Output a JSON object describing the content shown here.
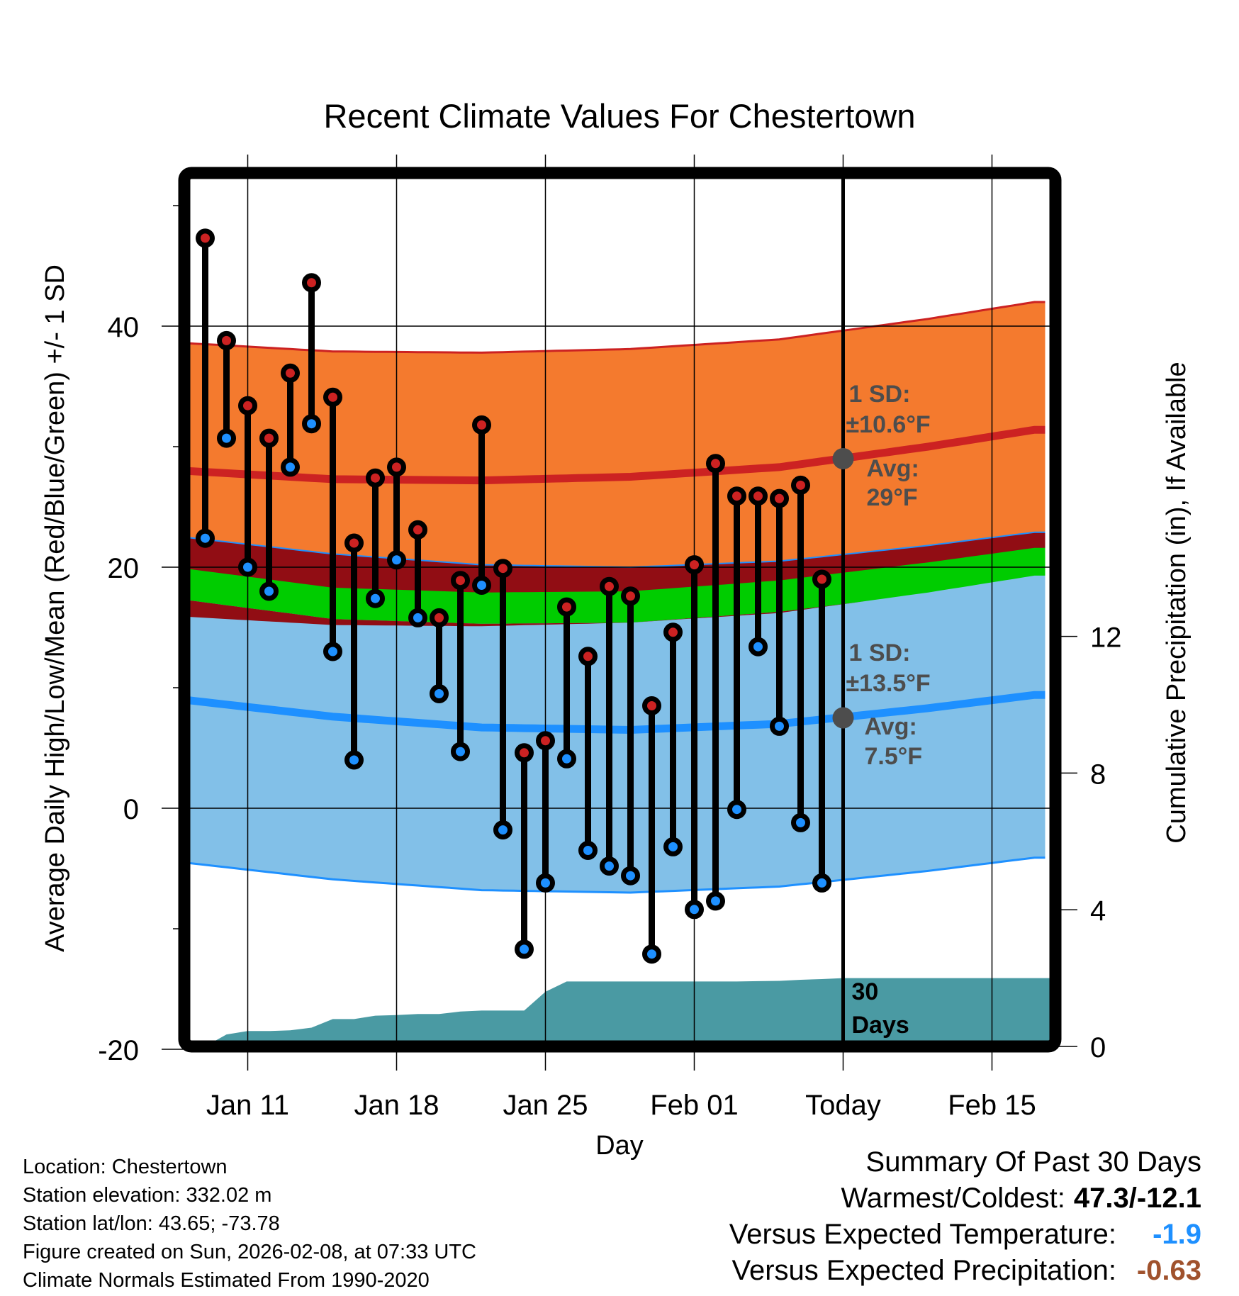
{
  "chart_data": {
    "type": "line",
    "title": "Recent Climate Values For Chestertown",
    "xlabel": "Day",
    "ylabel": "Average Daily High/Low/Mean (Red/Blue/Green) +/- 1 SD",
    "y2label": "Cumulative Precipitation (in), If Available",
    "x_range_days": [
      "Jan 08",
      "Feb 17"
    ],
    "ylim": [
      -20,
      53
    ],
    "y2lim": [
      0,
      17.2
    ],
    "grid": true,
    "xticks": [
      {
        "day": "Jan 11",
        "label": "Jan 11"
      },
      {
        "day": "Jan 18",
        "label": "Jan 18"
      },
      {
        "day": "Jan 25",
        "label": "Jan 25"
      },
      {
        "day": "Feb 01",
        "label": "Feb 01"
      },
      {
        "day": "Feb 08",
        "label": "Today"
      },
      {
        "day": "Feb 15",
        "label": "Feb 15"
      }
    ],
    "yticks": [
      -20,
      0,
      20,
      40
    ],
    "yticks_minor": [
      -10,
      10,
      30,
      50
    ],
    "y2ticks": [
      0,
      4,
      8,
      12
    ],
    "observed": {
      "dates": [
        "Jan 09",
        "Jan 10",
        "Jan 11",
        "Jan 12",
        "Jan 13",
        "Jan 14",
        "Jan 15",
        "Jan 16",
        "Jan 17",
        "Jan 18",
        "Jan 19",
        "Jan 20",
        "Jan 21",
        "Jan 22",
        "Jan 23",
        "Jan 24",
        "Jan 25",
        "Jan 26",
        "Jan 27",
        "Jan 28",
        "Jan 29",
        "Jan 30",
        "Jan 31",
        "Feb 01",
        "Feb 02",
        "Feb 03",
        "Feb 04",
        "Feb 05",
        "Feb 06",
        "Feb 07"
      ],
      "high": [
        47.3,
        38.8,
        33.4,
        30.7,
        36.1,
        43.6,
        34.1,
        22.0,
        27.4,
        28.3,
        23.1,
        15.8,
        18.9,
        31.8,
        19.9,
        4.6,
        5.6,
        16.7,
        12.6,
        18.4,
        17.6,
        8.5,
        14.6,
        20.2,
        28.6,
        25.9,
        25.9,
        25.7,
        26.8,
        19.0
      ],
      "low": [
        22.4,
        30.7,
        20.0,
        18.0,
        28.3,
        31.9,
        13.0,
        4.0,
        17.4,
        20.6,
        15.8,
        9.5,
        4.7,
        18.5,
        -1.8,
        -11.7,
        -6.2,
        4.1,
        -3.5,
        -4.8,
        -5.6,
        -12.1,
        -3.2,
        -8.4,
        -7.7,
        -0.1,
        13.4,
        6.8,
        -1.2,
        -6.2
      ]
    },
    "normals": {
      "days": [
        "Jan 08",
        "Jan 15",
        "Jan 22",
        "Jan 29",
        "Feb 05",
        "Feb 12",
        "Feb 17"
      ],
      "high_avg": [
        28.0,
        27.3,
        27.2,
        27.5,
        28.3,
        30.0,
        31.4
      ],
      "high_sd": 10.6,
      "low_avg": [
        9.0,
        7.6,
        6.7,
        6.5,
        7.0,
        8.3,
        9.4
      ],
      "low_sd": 13.5,
      "mean_avg": [
        18.6,
        17.0,
        16.6,
        16.7,
        17.6,
        19.1,
        20.3
      ],
      "mean_sd_band": 2.6
    },
    "precip_cumulative": {
      "dates": [
        "Jan 08",
        "Jan 09",
        "Jan 10",
        "Jan 11",
        "Jan 12",
        "Jan 13",
        "Jan 14",
        "Jan 15",
        "Jan 16",
        "Jan 17",
        "Jan 18",
        "Jan 19",
        "Jan 20",
        "Jan 21",
        "Jan 22",
        "Jan 23",
        "Jan 24",
        "Jan 25",
        "Jan 26",
        "Jan 27",
        "Jan 28",
        "Jan 29",
        "Jan 30",
        "Jan 31",
        "Feb 01",
        "Feb 02",
        "Feb 03",
        "Feb 04",
        "Feb 05",
        "Feb 06",
        "Feb 07",
        "Feb 08",
        "Feb 17"
      ],
      "values": [
        0.0,
        0.0,
        0.35,
        0.45,
        0.45,
        0.47,
        0.55,
        0.8,
        0.8,
        0.9,
        0.92,
        0.95,
        0.95,
        1.02,
        1.05,
        1.05,
        1.05,
        1.6,
        1.9,
        1.9,
        1.9,
        1.9,
        1.9,
        1.9,
        1.9,
        1.9,
        1.9,
        1.91,
        1.92,
        1.95,
        1.97,
        2.0,
        2.0
      ]
    },
    "annotations": {
      "high_sd": "1 SD:",
      "high_sd_value": "±10.6°F",
      "high_avg": "Avg:",
      "high_avg_value": "29°F",
      "high_avg_today": 29,
      "low_sd": "1 SD:",
      "low_sd_value": "±13.5°F",
      "low_avg": "Avg:",
      "low_avg_value": "7.5°F",
      "low_avg_today": 7.5,
      "precip_label_1": "30",
      "precip_label_2": "Days"
    },
    "colors": {
      "high_band": "#f47a2e",
      "high_line": "#cc2222",
      "low_band": "#82c0e8",
      "low_line": "#1e90ff",
      "overlap_band": "#910d14",
      "mean_band": "#00cc00",
      "precip": "#4a9aa3",
      "high_point": "#cc2222",
      "low_point": "#1e90ff",
      "annotation_dot": "#4d4d4d"
    }
  },
  "info": {
    "location": "Location: Chestertown",
    "elevation": "Station elevation: 332.02 m",
    "latlon": "Station lat/lon: 43.65; -73.78",
    "created": "Figure created on Sun, 2026-02-08, at 07:33 UTC",
    "normals": "Climate Normals Estimated From 1990-2020"
  },
  "summary": {
    "title": "Summary Of Past 30 Days",
    "extremes_label": "Warmest/Coldest:",
    "extremes_value": "47.3/-12.1",
    "temp_label": "Versus Expected Temperature:",
    "temp_value": "-1.9",
    "precip_label": "Versus Expected Precipitation:",
    "precip_value": "-0.63"
  }
}
